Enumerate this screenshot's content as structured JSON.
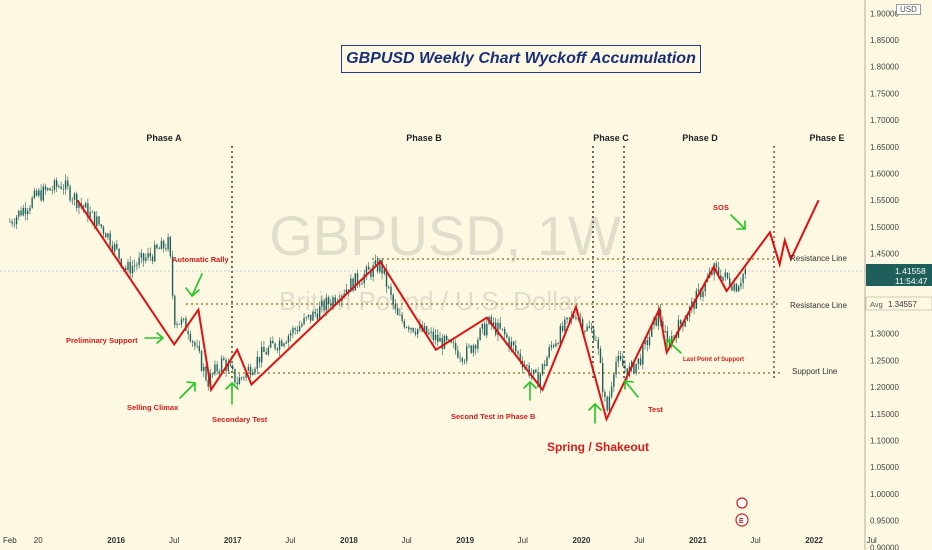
{
  "title": "GBPUSD Weekly Chart Wyckoff Accumulation",
  "watermark": {
    "symbol": "GBPUSD, 1W",
    "name": "British Pound / U.S. Dollar"
  },
  "currency_badge": "USD",
  "colors": {
    "background": "#fdf8e2",
    "candle": "#1f5f5b",
    "wyckoff_line": "#e01010",
    "arrow": "#22c722",
    "label": "#d81b1b",
    "phase_text": "#222222",
    "level_line": "#8a6d1e",
    "title": "#1a2f7a"
  },
  "price_tags": {
    "last_price": "1.41558",
    "countdown": "11:54:47",
    "avg_label": "Avg",
    "avg_value": "1.34557"
  },
  "phases": [
    "Phase A",
    "Phase B",
    "Phase C",
    "Phase D",
    "Phase E"
  ],
  "level_labels": {
    "resistance_upper": "Resistance Line",
    "resistance_lower": "Resistance Line",
    "support": "Support Line"
  },
  "event_labels": {
    "automatic_rally": "Automatic Rally",
    "preliminary_support": "Preliminary Support",
    "selling_climax": "Selling Climax",
    "secondary_test": "Secondary Test",
    "second_test": "Second Test in Phase B",
    "spring": "Spring / Shakeout",
    "test": "Test",
    "lps": "Last Point of Support",
    "sos": "SOS"
  },
  "x_ticks": [
    "Feb",
    "20",
    "2016",
    "Jul",
    "2017",
    "Jul",
    "2018",
    "Jul",
    "2019",
    "Jul",
    "2020",
    "Jul",
    "2021",
    "Jul",
    "2022",
    "Jul"
  ],
  "chart_data": {
    "type": "candlestick",
    "title": "GBPUSD Weekly Chart Wyckoff Accumulation",
    "y_ticks": [
      0.9,
      0.95,
      1.0,
      1.05,
      1.1,
      1.15,
      1.2,
      1.25,
      1.3,
      1.35,
      1.4,
      1.45,
      1.5,
      1.55,
      1.6,
      1.65,
      1.7,
      1.75,
      1.8,
      1.85,
      1.9
    ],
    "y_tick_labels": [
      "0.90000",
      "0.95000",
      "1.00000",
      "1.05000",
      "1.10000",
      "1.15000",
      "1.20000",
      "1.25000",
      "1.30000",
      "1.35000",
      "1.40000",
      "1.45000",
      "1.50000",
      "1.55000",
      "1.60000",
      "1.65000",
      "1.70000",
      "1.75000",
      "1.80000",
      "1.85000",
      "1.90000"
    ],
    "ylim": [
      0.895,
      1.925
    ],
    "levels": {
      "resistance_upper": 1.435,
      "resistance_lower": 1.345,
      "support": 1.205
    },
    "price_path": [
      [
        "2015-02-01",
        1.51
      ],
      [
        "2015-05-01",
        1.56
      ],
      [
        "2015-07-15",
        1.58
      ],
      [
        "2015-10-01",
        1.53
      ],
      [
        "2015-12-01",
        1.49
      ],
      [
        "2016-02-01",
        1.42
      ],
      [
        "2016-04-01",
        1.44
      ],
      [
        "2016-06-15",
        1.47
      ],
      [
        "2016-07-01",
        1.33
      ],
      [
        "2016-08-15",
        1.31
      ],
      [
        "2016-10-15",
        1.21
      ],
      [
        "2016-12-01",
        1.25
      ],
      [
        "2017-01-15",
        1.21
      ],
      [
        "2017-04-01",
        1.26
      ],
      [
        "2017-09-01",
        1.33
      ],
      [
        "2018-01-01",
        1.39
      ],
      [
        "2018-04-10",
        1.43
      ],
      [
        "2018-06-01",
        1.33
      ],
      [
        "2018-09-01",
        1.3
      ],
      [
        "2019-01-01",
        1.26
      ],
      [
        "2019-03-15",
        1.32
      ],
      [
        "2019-05-01",
        1.3
      ],
      [
        "2019-08-15",
        1.21
      ],
      [
        "2019-10-01",
        1.28
      ],
      [
        "2019-12-15",
        1.34
      ],
      [
        "2020-01-15",
        1.31
      ],
      [
        "2020-02-15",
        1.3
      ],
      [
        "2020-03-20",
        1.15
      ],
      [
        "2020-04-15",
        1.25
      ],
      [
        "2020-06-01",
        1.23
      ],
      [
        "2020-07-01",
        1.25
      ],
      [
        "2020-09-01",
        1.34
      ],
      [
        "2020-09-25",
        1.28
      ],
      [
        "2020-12-01",
        1.34
      ],
      [
        "2021-02-20",
        1.42
      ],
      [
        "2021-05-01",
        1.39
      ],
      [
        "2021-06-01",
        1.42
      ]
    ],
    "wyckoff_path": [
      [
        "2015-09-01",
        1.55
      ],
      [
        "2016-07-01",
        1.28
      ],
      [
        "2016-09-15",
        1.345
      ],
      [
        "2016-10-25",
        1.195
      ],
      [
        "2017-01-15",
        1.27
      ],
      [
        "2017-03-01",
        1.205
      ],
      [
        "2018-04-10",
        1.435
      ],
      [
        "2018-10-01",
        1.27
      ],
      [
        "2019-03-10",
        1.33
      ],
      [
        "2019-09-01",
        1.195
      ],
      [
        "2019-12-15",
        1.35
      ],
      [
        "2020-03-20",
        1.14
      ],
      [
        "2020-09-01",
        1.345
      ],
      [
        "2020-09-25",
        1.265
      ],
      [
        "2021-02-20",
        1.425
      ],
      [
        "2021-04-01",
        1.38
      ],
      [
        "2021-08-15",
        1.49
      ],
      [
        "2021-09-15",
        1.43
      ],
      [
        "2021-10-01",
        1.475
      ],
      [
        "2021-10-20",
        1.44
      ],
      [
        "2022-01-15",
        1.55
      ]
    ],
    "projection_start": "2021-07-01"
  }
}
